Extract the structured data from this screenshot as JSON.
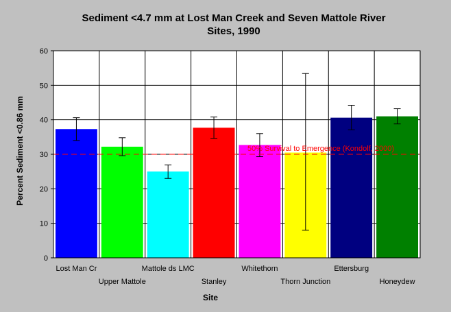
{
  "chart_data": {
    "type": "bar",
    "title_lines": [
      "Sediment <4.7 mm at Lost Man Creek and Seven Mattole River",
      "Sites, 1990"
    ],
    "xlabel": "Site",
    "ylabel": "Percent Sediment <0.86 mm",
    "ylim": [
      0,
      60
    ],
    "yticks": [
      "0",
      "10",
      "20",
      "30",
      "40",
      "50",
      "60"
    ],
    "grid": true,
    "categories": [
      "Lost Man Cr",
      "Upper Mattole",
      "Mattole ds LMC",
      "Stanley",
      "Whitethorn",
      "Thorn Junction",
      "Ettersburg",
      "Honeydew"
    ],
    "values": [
      37.3,
      32.2,
      25.0,
      37.7,
      32.7,
      30.5,
      40.6,
      41.0
    ],
    "error_low": [
      34.0,
      29.6,
      23.0,
      34.6,
      29.3,
      8.0,
      37.1,
      38.8
    ],
    "error_high": [
      40.6,
      34.8,
      26.9,
      40.8,
      36.0,
      53.4,
      44.2,
      43.2
    ],
    "colors": [
      "#0000ff",
      "#00ff00",
      "#00ffff",
      "#ff0000",
      "#ff00ff",
      "#ffff00",
      "#000080",
      "#008000"
    ],
    "reference_line": {
      "value": 30,
      "label": "50% Survival to Emergence (Kondolf, 2000)",
      "color": "#ff0000"
    }
  }
}
